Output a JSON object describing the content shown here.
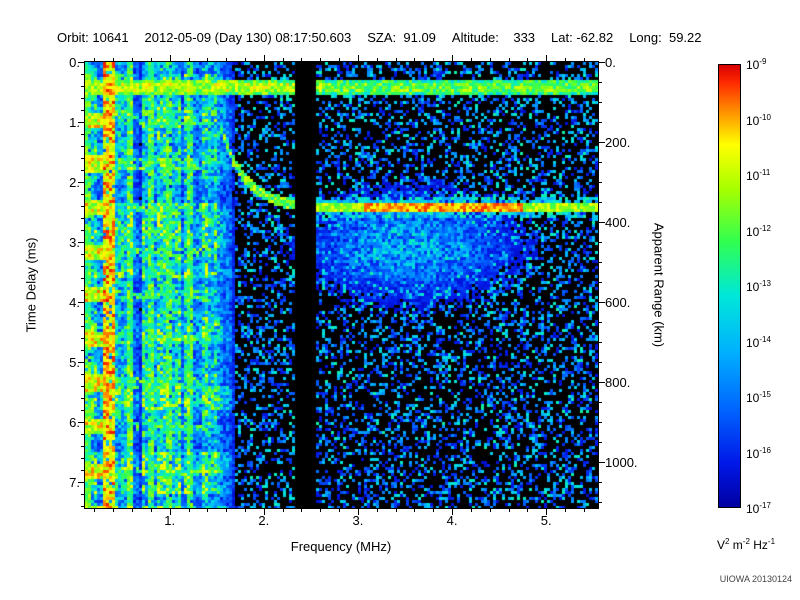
{
  "header": {
    "fields": [
      "Orbit: 10641",
      "2012-05-09 (Day 130) 08:17:50.603",
      "SZA:  91.09",
      "Altitude:    333",
      "Lat: -62.82",
      "Long:  59.22"
    ]
  },
  "watermark": "UIOWA 20130124",
  "chart_data": {
    "type": "heatmap",
    "description": "Radar sounder ionogram spectrogram: received spectral density vs frequency and time delay",
    "xlabel": "Frequency (MHz)",
    "ylabel_left": "Time Delay (ms)",
    "ylabel_right": "Apparent Range (km)",
    "x_range_mhz": [
      0.1,
      5.55
    ],
    "y_range_ms": [
      0,
      7.44
    ],
    "x_major_ticks": [
      1,
      2,
      3,
      4,
      5
    ],
    "x_minor_step_mhz": 0.2,
    "y_major_ticks_ms": [
      0,
      1,
      2,
      3,
      4,
      5,
      6,
      7
    ],
    "y_minor_step_ms": 0.2,
    "right_major_ticks_km": [
      0,
      200,
      400,
      600,
      800,
      1000
    ],
    "right_minor_step_km": 50,
    "km_per_ms": 150,
    "colorbar": {
      "scale": "log10",
      "tick_exponents": [
        -9,
        -10,
        -11,
        -12,
        -13,
        -14,
        -15,
        -16,
        -17
      ],
      "units_parts": [
        [
          "V",
          "2"
        ],
        [
          " m",
          "-2"
        ],
        [
          " Hz",
          "-1"
        ]
      ],
      "gradient": [
        [
          0.0,
          "#0000a0"
        ],
        [
          0.1,
          "#0018e8"
        ],
        [
          0.22,
          "#0064ff"
        ],
        [
          0.35,
          "#00b0ff"
        ],
        [
          0.48,
          "#00e8d8"
        ],
        [
          0.6,
          "#30ff50"
        ],
        [
          0.72,
          "#a8ff00"
        ],
        [
          0.82,
          "#ffff00"
        ],
        [
          0.9,
          "#ff8800"
        ],
        [
          0.96,
          "#ff2a00"
        ],
        [
          1.0,
          "#d80000"
        ]
      ]
    },
    "features": {
      "transmit_band_ms": [
        0.28,
        0.52
      ],
      "plasma_resonance_lines_mhz": [
        0.13,
        0.34,
        0.56,
        0.77,
        0.98,
        1.2
      ],
      "cyclotron_echo_first_ms": 0.95,
      "cyclotron_echo_spacing_ms": 0.73,
      "striped_region_max_mhz": 1.68,
      "data_gap_mhz": [
        2.33,
        2.54
      ],
      "ionosphere_trace_start_mhz": 1.52,
      "surface_echo_delay_ms": 2.4,
      "surface_echo_band_mhz": [
        2.5,
        5.55
      ],
      "surface_echo_bright_mhz": [
        3.05,
        4.75
      ],
      "background": "black with speckled dark-blue noise"
    }
  }
}
